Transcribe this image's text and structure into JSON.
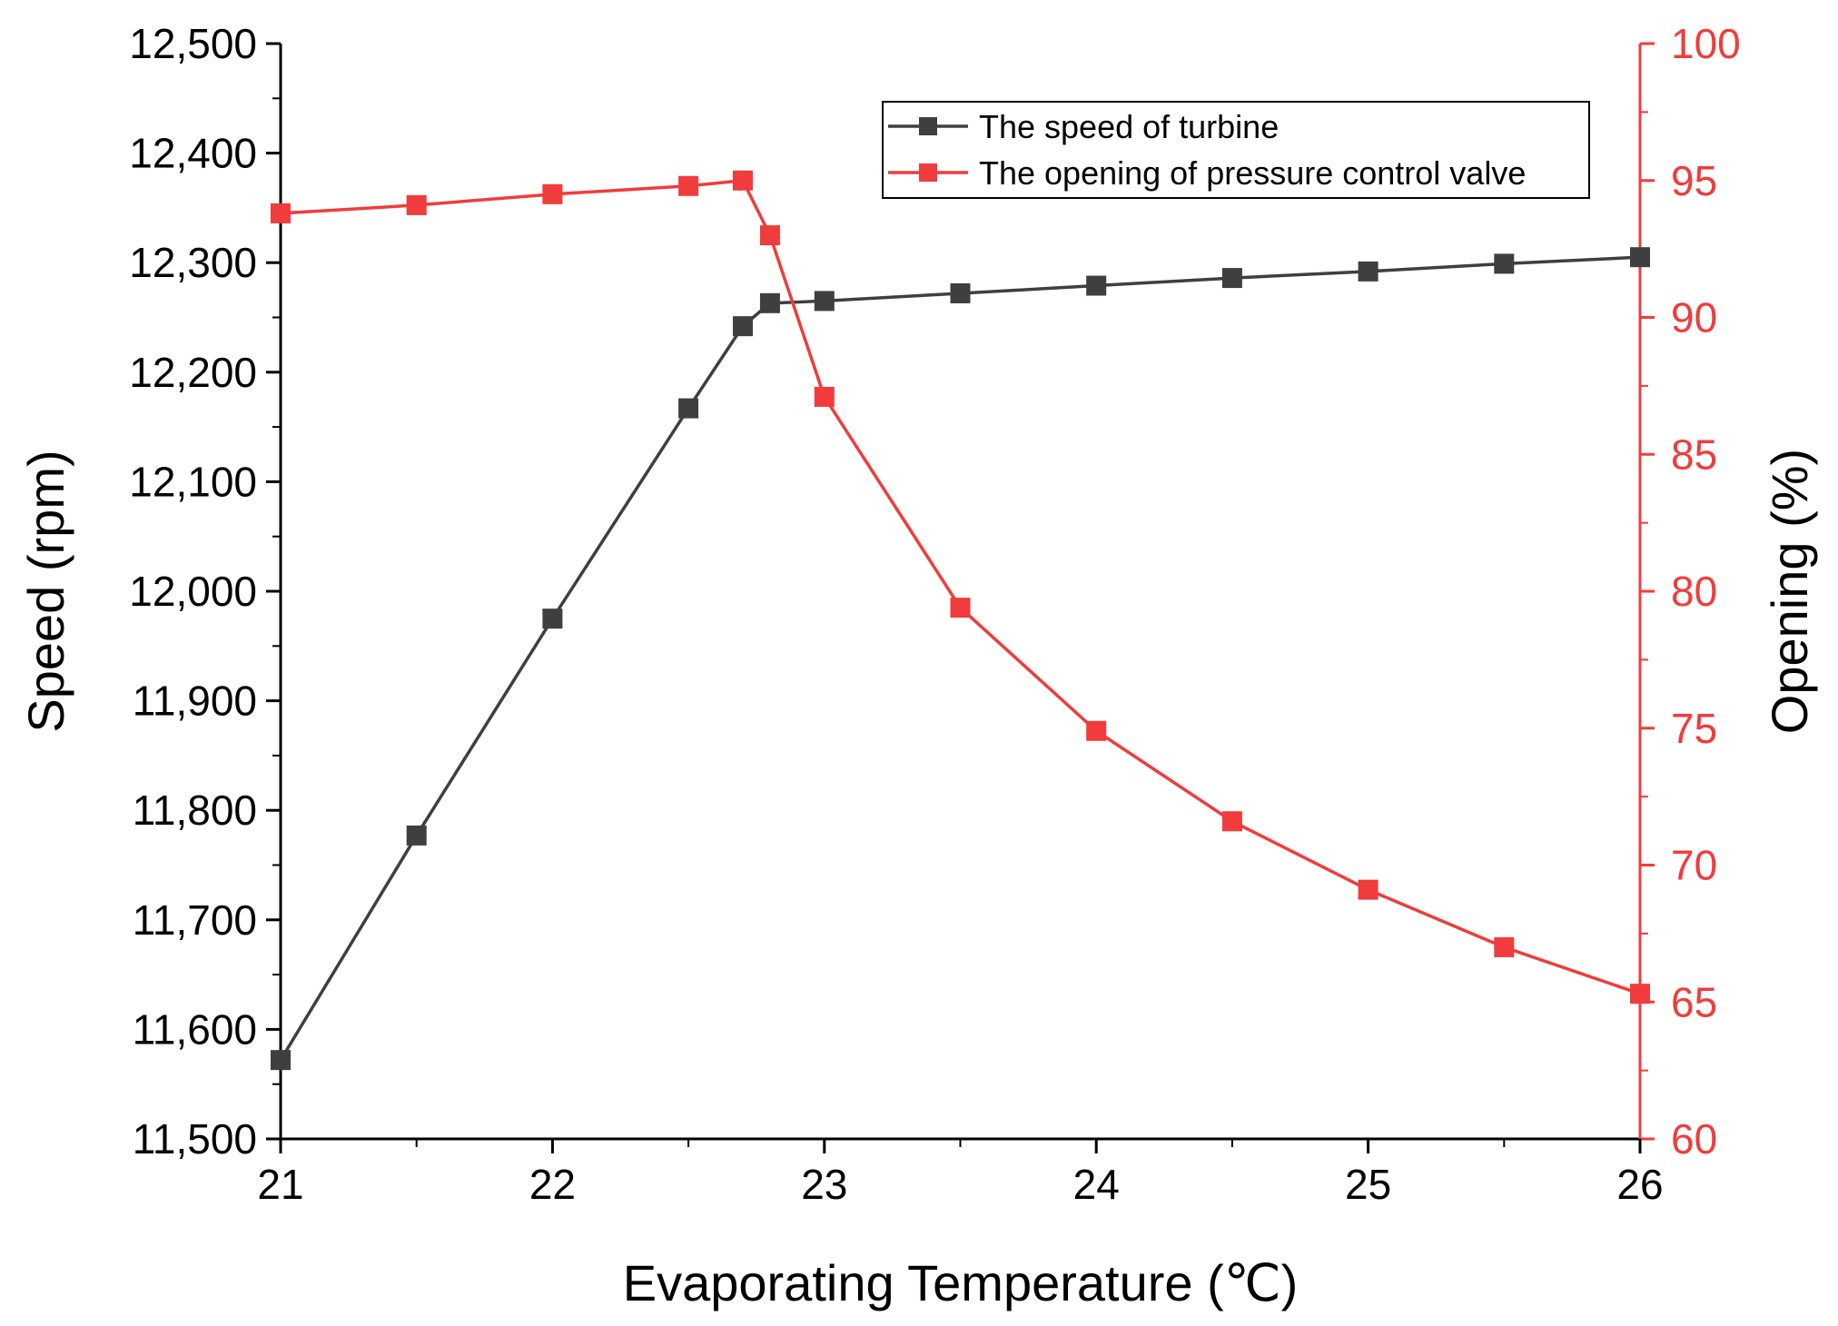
{
  "chart_data": {
    "type": "line",
    "title": "",
    "xlabel": "Evaporating Temperature (℃)",
    "ylabel_left": "Speed (rpm)",
    "ylabel_right": "Opening (%)",
    "xlim": [
      21,
      26
    ],
    "ylim_left": [
      11500,
      12500
    ],
    "ylim_right": [
      60,
      100
    ],
    "x_ticks": [
      21,
      22,
      23,
      24,
      25,
      26
    ],
    "x_tick_labels": [
      "21",
      "22",
      "23",
      "24",
      "25",
      "26"
    ],
    "y_left_ticks": [
      11500,
      11600,
      11700,
      11800,
      11900,
      12000,
      12100,
      12200,
      12300,
      12400,
      12500
    ],
    "y_left_tick_labels": [
      "11,500",
      "11,600",
      "11,700",
      "11,800",
      "11,900",
      "12,000",
      "12,100",
      "12,200",
      "12,300",
      "12,400",
      "12,500"
    ],
    "y_right_ticks": [
      60,
      65,
      70,
      75,
      80,
      85,
      90,
      95,
      100
    ],
    "y_right_tick_labels": [
      "60",
      "65",
      "70",
      "75",
      "80",
      "85",
      "90",
      "95",
      "100"
    ],
    "legend_position": "top-right",
    "series": [
      {
        "name": "The speed of turbine",
        "axis": "left",
        "color": "#3f3f3f",
        "x": [
          21,
          21.5,
          22,
          22.5,
          22.7,
          22.8,
          23,
          23.5,
          24,
          24.5,
          25,
          25.5,
          26
        ],
        "values": [
          11572,
          11777,
          11975,
          12167,
          12242,
          12263,
          12265,
          12272,
          12279,
          12286,
          12292,
          12299,
          12305
        ]
      },
      {
        "name": "The opening of pressure control valve",
        "axis": "right",
        "color": "#f03c3c",
        "x": [
          21,
          21.5,
          22,
          22.5,
          22.7,
          22.8,
          23,
          23.5,
          24,
          24.5,
          25,
          25.5,
          26
        ],
        "values": [
          93.8,
          94.1,
          94.5,
          94.8,
          95.0,
          93.0,
          87.1,
          79.4,
          74.9,
          71.6,
          69.1,
          67.0,
          65.3
        ]
      }
    ]
  }
}
